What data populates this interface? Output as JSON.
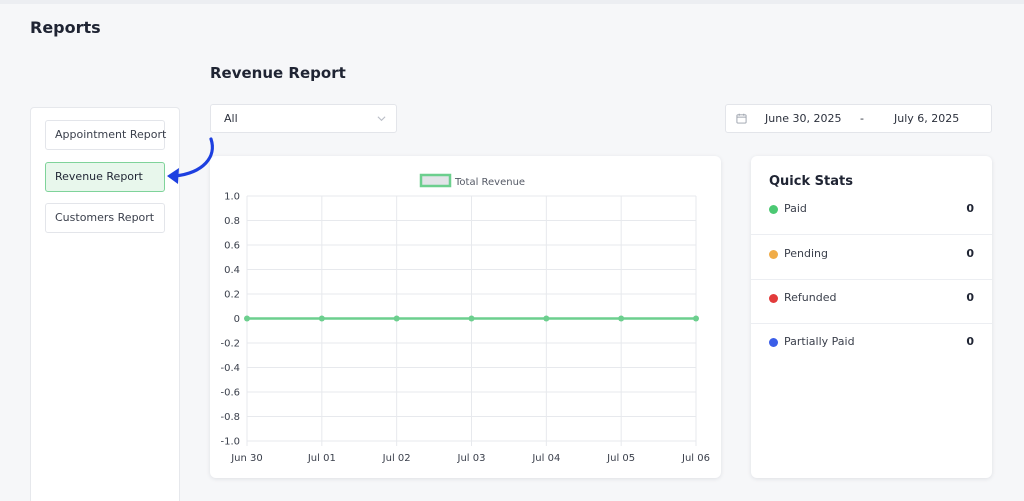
{
  "page": {
    "title": "Reports"
  },
  "section": {
    "title": "Revenue Report"
  },
  "sidebar": {
    "items": [
      {
        "label": "Appointment Report",
        "active": false
      },
      {
        "label": "Revenue Report",
        "active": true
      },
      {
        "label": "Customers Report",
        "active": false
      }
    ]
  },
  "filter": {
    "selected": "All"
  },
  "date_range": {
    "start": "June 30, 2025",
    "separator": "-",
    "end": "July 6, 2025"
  },
  "quick_stats": {
    "title": "Quick Stats",
    "items": [
      {
        "label": "Paid",
        "value": "0",
        "color": "#4cc973"
      },
      {
        "label": "Pending",
        "value": "0",
        "color": "#f0ac48"
      },
      {
        "label": "Refunded",
        "value": "0",
        "color": "#e23b3b"
      },
      {
        "label": "Partially Paid",
        "value": "0",
        "color": "#3b5ee8"
      }
    ]
  },
  "colors": {
    "accent": "#4cc973",
    "arrow": "#1d3fe0"
  },
  "chart_data": {
    "type": "line",
    "categories": [
      "Jun 30",
      "Jul 01",
      "Jul 02",
      "Jul 03",
      "Jul 04",
      "Jul 05",
      "Jul 06"
    ],
    "series": [
      {
        "name": "Total Revenue",
        "values": [
          0,
          0,
          0,
          0,
          0,
          0,
          0
        ],
        "color": "#6ccf8e"
      }
    ],
    "ylim": [
      -1.0,
      1.0
    ],
    "yticks": [
      "1.0",
      "0.8",
      "0.6",
      "0.4",
      "0.2",
      "0",
      "-0.2",
      "-0.4",
      "-0.6",
      "-0.8",
      "-1.0"
    ],
    "grid": true,
    "legend": "top-center"
  }
}
